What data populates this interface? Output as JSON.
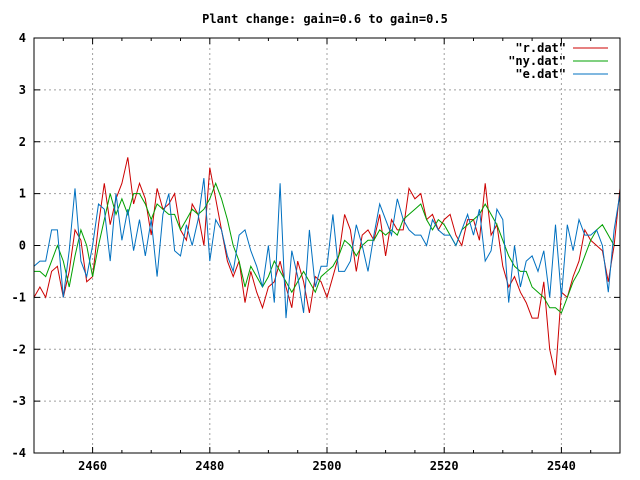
{
  "chart_data": {
    "type": "line",
    "title": "Plant change: gain=0.6 to gain=0.5",
    "xlabel": "",
    "ylabel": "",
    "xlim": [
      2450,
      2550
    ],
    "ylim": [
      -4,
      4
    ],
    "x_ticks": [
      2460,
      2480,
      2500,
      2520,
      2540
    ],
    "y_ticks": [
      -4,
      -3,
      -2,
      -1,
      0,
      1,
      2,
      3,
      4
    ],
    "grid": true,
    "legend_position": "top-right",
    "series": [
      {
        "name": "\"r.dat\"",
        "color": "#cc0000",
        "x": [
          2450,
          2451,
          2452,
          2453,
          2454,
          2455,
          2456,
          2457,
          2458,
          2459,
          2460,
          2461,
          2462,
          2463,
          2464,
          2465,
          2466,
          2467,
          2468,
          2469,
          2470,
          2471,
          2472,
          2473,
          2474,
          2475,
          2476,
          2477,
          2478,
          2479,
          2480,
          2481,
          2482,
          2483,
          2484,
          2485,
          2486,
          2487,
          2488,
          2489,
          2490,
          2491,
          2492,
          2493,
          2494,
          2495,
          2496,
          2497,
          2498,
          2499,
          2500,
          2501,
          2502,
          2503,
          2504,
          2505,
          2506,
          2507,
          2508,
          2509,
          2510,
          2511,
          2512,
          2513,
          2514,
          2515,
          2516,
          2517,
          2518,
          2519,
          2520,
          2521,
          2522,
          2523,
          2524,
          2525,
          2526,
          2527,
          2528,
          2529,
          2530,
          2531,
          2532,
          2533,
          2534,
          2535,
          2536,
          2537,
          2538,
          2539,
          2540,
          2541,
          2542,
          2543,
          2544,
          2545,
          2546,
          2547,
          2548,
          2549,
          2550
        ],
        "values": [
          -1.0,
          -0.8,
          -1.0,
          -0.5,
          -0.4,
          -1.0,
          -0.5,
          0.3,
          0.1,
          -0.7,
          -0.6,
          0.4,
          1.2,
          0.4,
          0.9,
          1.2,
          1.7,
          0.8,
          1.2,
          0.9,
          0.2,
          1.1,
          0.7,
          0.8,
          1.0,
          0.3,
          0.1,
          0.8,
          0.6,
          0.0,
          1.5,
          0.9,
          0.3,
          -0.3,
          -0.6,
          -0.3,
          -1.1,
          -0.5,
          -0.9,
          -1.2,
          -0.8,
          -0.7,
          -0.3,
          -0.8,
          -1.2,
          -0.3,
          -0.7,
          -1.3,
          -0.6,
          -0.7,
          -1.0,
          -0.6,
          -0.2,
          0.6,
          0.3,
          -0.5,
          0.2,
          0.3,
          0.1,
          0.6,
          -0.2,
          0.5,
          0.3,
          0.3,
          1.1,
          0.9,
          1.0,
          0.5,
          0.6,
          0.3,
          0.5,
          0.6,
          0.2,
          0.0,
          0.5,
          0.5,
          0.1,
          1.2,
          0.2,
          0.4,
          -0.4,
          -0.8,
          -0.6,
          -0.9,
          -1.1,
          -1.4,
          -1.4,
          -0.7,
          -2.0,
          -2.5,
          -0.9,
          -1.0,
          -0.6,
          -0.3,
          0.3,
          0.1,
          0.0,
          -0.1,
          -0.7,
          0.0,
          1.1
        ]
      },
      {
        "name": "\"ny.dat\"",
        "color": "#00a000",
        "x": [
          2450,
          2451,
          2452,
          2453,
          2454,
          2455,
          2456,
          2457,
          2458,
          2459,
          2460,
          2461,
          2462,
          2463,
          2464,
          2465,
          2466,
          2467,
          2468,
          2469,
          2470,
          2471,
          2472,
          2473,
          2474,
          2475,
          2476,
          2477,
          2478,
          2479,
          2480,
          2481,
          2482,
          2483,
          2484,
          2485,
          2486,
          2487,
          2488,
          2489,
          2490,
          2491,
          2492,
          2493,
          2494,
          2495,
          2496,
          2497,
          2498,
          2499,
          2500,
          2501,
          2502,
          2503,
          2504,
          2505,
          2506,
          2507,
          2508,
          2509,
          2510,
          2511,
          2512,
          2513,
          2514,
          2515,
          2516,
          2517,
          2518,
          2519,
          2520,
          2521,
          2522,
          2523,
          2524,
          2525,
          2526,
          2527,
          2528,
          2529,
          2530,
          2531,
          2532,
          2533,
          2534,
          2535,
          2536,
          2537,
          2538,
          2539,
          2540,
          2541,
          2542,
          2543,
          2544,
          2545,
          2546,
          2547,
          2548,
          2549,
          2550
        ],
        "values": [
          -0.5,
          -0.5,
          -0.6,
          -0.3,
          0.0,
          -0.3,
          -0.8,
          -0.2,
          0.3,
          0.0,
          -0.6,
          0.0,
          0.5,
          1.0,
          0.6,
          0.9,
          0.6,
          1.0,
          1.0,
          0.8,
          0.5,
          0.8,
          0.7,
          0.6,
          0.6,
          0.3,
          0.5,
          0.7,
          0.6,
          0.7,
          0.9,
          1.2,
          0.9,
          0.5,
          0.0,
          -0.3,
          -0.8,
          -0.4,
          -0.6,
          -0.8,
          -0.6,
          -0.3,
          -0.5,
          -0.7,
          -0.9,
          -0.7,
          -0.5,
          -0.7,
          -0.9,
          -0.6,
          -0.5,
          -0.4,
          -0.2,
          0.1,
          0.0,
          -0.2,
          0.0,
          0.1,
          0.1,
          0.3,
          0.2,
          0.3,
          0.2,
          0.5,
          0.6,
          0.7,
          0.8,
          0.5,
          0.3,
          0.5,
          0.4,
          0.2,
          0.0,
          0.3,
          0.4,
          0.5,
          0.6,
          0.8,
          0.6,
          0.4,
          0.1,
          -0.2,
          -0.4,
          -0.5,
          -0.5,
          -0.8,
          -0.9,
          -1.0,
          -1.2,
          -1.2,
          -1.3,
          -1.0,
          -0.7,
          -0.5,
          -0.2,
          0.1,
          0.3,
          0.4,
          0.2,
          0.0,
          0.0
        ]
      },
      {
        "name": "\"e.dat\"",
        "color": "#0070c0",
        "x": [
          2450,
          2451,
          2452,
          2453,
          2454,
          2455,
          2456,
          2457,
          2458,
          2459,
          2460,
          2461,
          2462,
          2463,
          2464,
          2465,
          2466,
          2467,
          2468,
          2469,
          2470,
          2471,
          2472,
          2473,
          2474,
          2475,
          2476,
          2477,
          2478,
          2479,
          2480,
          2481,
          2482,
          2483,
          2484,
          2485,
          2486,
          2487,
          2488,
          2489,
          2490,
          2491,
          2492,
          2493,
          2494,
          2495,
          2496,
          2497,
          2498,
          2499,
          2500,
          2501,
          2502,
          2503,
          2504,
          2505,
          2506,
          2507,
          2508,
          2509,
          2510,
          2511,
          2512,
          2513,
          2514,
          2515,
          2516,
          2517,
          2518,
          2519,
          2520,
          2521,
          2522,
          2523,
          2524,
          2525,
          2526,
          2527,
          2528,
          2529,
          2530,
          2531,
          2532,
          2533,
          2534,
          2535,
          2536,
          2537,
          2538,
          2539,
          2540,
          2541,
          2542,
          2543,
          2544,
          2545,
          2546,
          2547,
          2548,
          2549,
          2550
        ],
        "values": [
          -0.4,
          -0.3,
          -0.3,
          0.3,
          0.3,
          -1.0,
          -0.1,
          1.1,
          -0.3,
          -0.6,
          0.0,
          0.8,
          0.7,
          -0.3,
          1.0,
          0.1,
          0.7,
          -0.1,
          0.5,
          -0.2,
          0.5,
          -0.6,
          0.6,
          1.0,
          -0.1,
          -0.2,
          0.4,
          0.0,
          0.5,
          1.3,
          -0.3,
          0.5,
          0.3,
          -0.2,
          -0.5,
          0.2,
          0.3,
          -0.1,
          -0.4,
          -0.8,
          0.0,
          -1.1,
          1.2,
          -1.4,
          -0.1,
          -0.6,
          -1.3,
          0.3,
          -0.8,
          -0.4,
          -0.4,
          0.6,
          -0.5,
          -0.5,
          -0.3,
          0.4,
          0.0,
          -0.5,
          0.2,
          0.8,
          0.5,
          0.2,
          0.9,
          0.5,
          0.3,
          0.2,
          0.2,
          0.0,
          0.5,
          0.3,
          0.2,
          0.2,
          0.0,
          0.3,
          0.6,
          0.2,
          0.7,
          -0.3,
          -0.1,
          0.7,
          0.5,
          -1.1,
          0.0,
          -0.8,
          -0.3,
          -0.2,
          -0.5,
          -0.1,
          -1.0,
          0.4,
          -1.0,
          0.4,
          -0.1,
          0.5,
          0.2,
          0.2,
          0.3,
          0.0,
          -0.9,
          0.3,
          1.0
        ]
      }
    ]
  }
}
